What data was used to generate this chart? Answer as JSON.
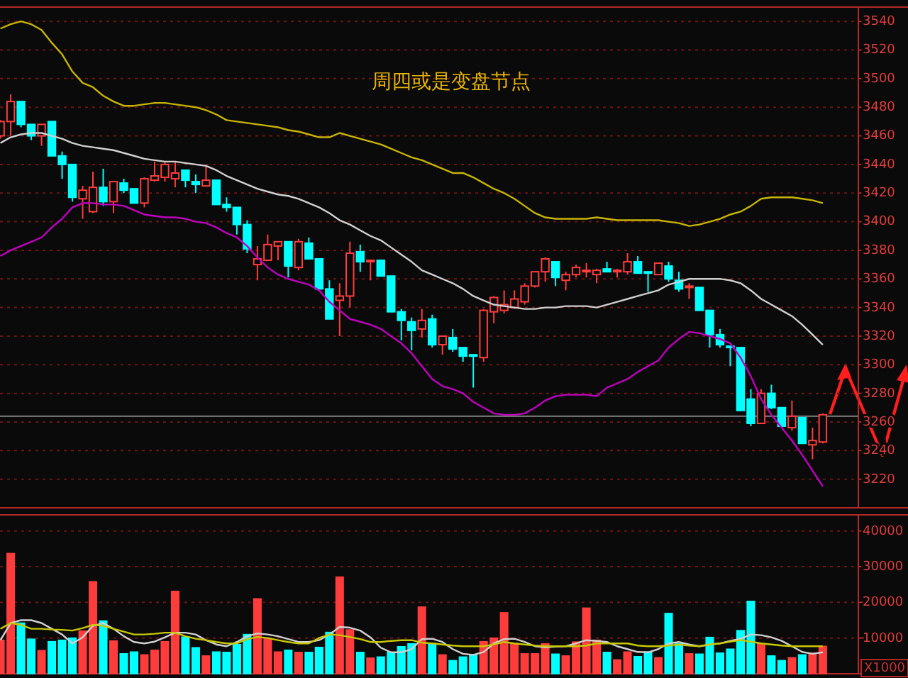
{
  "chart_data": [
    {
      "type": "candlestick",
      "title": "周四或是变盘节点",
      "categories": [
        null,
        null,
        null,
        null,
        null,
        null,
        null,
        null,
        null,
        null,
        null,
        null,
        null,
        null,
        null,
        null,
        null,
        null,
        null,
        null,
        null,
        null,
        null,
        null,
        null,
        null,
        null,
        null,
        null,
        null,
        null,
        null,
        null,
        null,
        null,
        null,
        null,
        null,
        null,
        null,
        null,
        null,
        null,
        null,
        null,
        null,
        null,
        null,
        null,
        null,
        null,
        null,
        null,
        null,
        null,
        null,
        null,
        null,
        null,
        null,
        null,
        null,
        null,
        null,
        null,
        null,
        null,
        null,
        null,
        null,
        null,
        null,
        null,
        null,
        null,
        null,
        null,
        null,
        null,
        null,
        null
      ],
      "ohlc": [
        [
          3460,
          3471,
          3458,
          3470
        ],
        [
          3470,
          3489,
          3460,
          3484
        ],
        [
          3484,
          3484,
          3466,
          3468
        ],
        [
          3468,
          3468,
          3457,
          3460
        ],
        [
          3460,
          3468,
          3453,
          3468
        ],
        [
          3470,
          3470,
          3446,
          3446
        ],
        [
          3446,
          3449,
          3430,
          3440
        ],
        [
          3440,
          3440,
          3414,
          3417
        ],
        [
          3416,
          3425,
          3402,
          3422
        ],
        [
          3407,
          3435,
          3406,
          3424
        ],
        [
          3424,
          3437,
          3411,
          3414
        ],
        [
          3414,
          3428,
          3406,
          3428
        ],
        [
          3427,
          3430,
          3420,
          3422
        ],
        [
          3423,
          3423,
          3413,
          3413
        ],
        [
          3413,
          3431,
          3410,
          3430
        ],
        [
          3429,
          3442,
          3428,
          3432
        ],
        [
          3431,
          3442,
          3428,
          3440
        ],
        [
          3430,
          3442,
          3424,
          3434
        ],
        [
          3436,
          3436,
          3424,
          3429
        ],
        [
          3428,
          3433,
          3420,
          3426
        ],
        [
          3425,
          3439,
          3425,
          3429
        ],
        [
          3429,
          3429,
          3412,
          3412
        ],
        [
          3412,
          3417,
          3407,
          3410
        ],
        [
          3410,
          3410,
          3391,
          3398
        ],
        [
          3398,
          3401,
          3378,
          3381
        ],
        [
          3370,
          3383,
          3359,
          3374
        ],
        [
          3373,
          3391,
          3373,
          3384
        ],
        [
          3383,
          3386,
          3373,
          3386
        ],
        [
          3386,
          3386,
          3361,
          3369
        ],
        [
          3368,
          3388,
          3366,
          3386
        ],
        [
          3385,
          3389,
          3374,
          3374
        ],
        [
          3374,
          3374,
          3353,
          3353
        ],
        [
          3353,
          3359,
          3332,
          3332
        ],
        [
          3345,
          3357,
          3320,
          3348
        ],
        [
          3348,
          3386,
          3340,
          3378
        ],
        [
          3379,
          3384,
          3365,
          3372
        ],
        [
          3372,
          3373,
          3359,
          3373
        ],
        [
          3373,
          3373,
          3362,
          3362
        ],
        [
          3362,
          3362,
          3337,
          3337
        ],
        [
          3337,
          3339,
          3317,
          3331
        ],
        [
          3330,
          3333,
          3310,
          3324
        ],
        [
          3325,
          3339,
          3319,
          3331
        ],
        [
          3332,
          3335,
          3312,
          3314
        ],
        [
          3314,
          3320,
          3307,
          3320
        ],
        [
          3319,
          3325,
          3309,
          3311
        ],
        [
          3312,
          3312,
          3302,
          3306
        ],
        [
          3307,
          3307,
          3284,
          3306
        ],
        [
          3305,
          3339,
          3302,
          3338
        ],
        [
          3337,
          3348,
          3329,
          3347
        ],
        [
          3338,
          3352,
          3336,
          3342
        ],
        [
          3340,
          3352,
          3339,
          3346
        ],
        [
          3344,
          3357,
          3342,
          3355
        ],
        [
          3355,
          3365,
          3354,
          3365
        ],
        [
          3365,
          3375,
          3358,
          3374
        ],
        [
          3372,
          3372,
          3355,
          3361
        ],
        [
          3359,
          3365,
          3352,
          3363
        ],
        [
          3363,
          3370,
          3361,
          3368
        ],
        [
          3365,
          3371,
          3361,
          3366
        ],
        [
          3363,
          3367,
          3357,
          3366
        ],
        [
          3367,
          3372,
          3365,
          3365
        ],
        [
          3365,
          3367,
          3361,
          3366
        ],
        [
          3365,
          3378,
          3363,
          3372
        ],
        [
          3372,
          3376,
          3364,
          3364
        ],
        [
          3365,
          3365,
          3351,
          3364
        ],
        [
          3363,
          3371,
          3363,
          3371
        ],
        [
          3369,
          3372,
          3358,
          3360
        ],
        [
          3359,
          3365,
          3351,
          3353
        ],
        [
          3354,
          3357,
          3346,
          3355
        ],
        [
          3354,
          3354,
          3338,
          3338
        ],
        [
          3338,
          3338,
          3312,
          3321
        ],
        [
          3321,
          3325,
          3312,
          3314
        ],
        [
          3313,
          3313,
          3299,
          3312
        ],
        [
          3312,
          3312,
          3268,
          3268
        ],
        [
          3276,
          3283,
          3257,
          3259
        ],
        [
          3259,
          3283,
          3259,
          3280
        ],
        [
          3280,
          3286,
          3269,
          3270
        ],
        [
          3270,
          3270,
          3257,
          3257
        ],
        [
          3256,
          3275,
          3254,
          3264
        ],
        [
          3263,
          3263,
          3245,
          3245
        ],
        [
          3244,
          3256,
          3234,
          3247
        ],
        [
          3246,
          3266,
          3245,
          3265
        ]
      ],
      "colors": [
        "#ff3c3c",
        "#ff3c3c",
        "#00ffff",
        "#00ffff",
        "#ff3c3c",
        "#00ffff",
        "#00ffff",
        "#00ffff",
        "#ff3c3c",
        "#ff3c3c",
        "#00ffff",
        "#ff3c3c",
        "#00ffff",
        "#00ffff",
        "#ff3c3c",
        "#ff3c3c",
        "#ff3c3c",
        "#ff3c3c",
        "#00ffff",
        "#00ffff",
        "#ff3c3c",
        "#00ffff",
        "#00ffff",
        "#00ffff",
        "#00ffff",
        "#ff3c3c",
        "#ff3c3c",
        "#ff3c3c",
        "#00ffff",
        "#ff3c3c",
        "#00ffff",
        "#00ffff",
        "#00ffff",
        "#ff3c3c",
        "#ff3c3c",
        "#00ffff",
        "#ff3c3c",
        "#00ffff",
        "#00ffff",
        "#00ffff",
        "#00ffff",
        "#ff3c3c",
        "#00ffff",
        "#ff3c3c",
        "#00ffff",
        "#00ffff",
        "#00ffff",
        "#ff3c3c",
        "#ff3c3c",
        "#ff3c3c",
        "#ff3c3c",
        "#ff3c3c",
        "#ff3c3c",
        "#ff3c3c",
        "#00ffff",
        "#ff3c3c",
        "#ff3c3c",
        "#ff3c3c",
        "#ff3c3c",
        "#00ffff",
        "#ff3c3c",
        "#ff3c3c",
        "#00ffff",
        "#00ffff",
        "#ff3c3c",
        "#00ffff",
        "#00ffff",
        "#ff3c3c",
        "#00ffff",
        "#00ffff",
        "#00ffff",
        "#00ffff",
        "#00ffff",
        "#00ffff",
        "#ff3c3c",
        "#00ffff",
        "#00ffff",
        "#ff3c3c",
        "#00ffff",
        "#ff3c3c",
        "#ff3c3c"
      ],
      "series": [
        {
          "type": "line",
          "color": "#c8b400",
          "values": [
            3535,
            3538,
            3540,
            3538,
            3534,
            3525,
            3517,
            3505,
            3497,
            3494,
            3488,
            3484,
            3481,
            3481,
            3482,
            3483,
            3483,
            3482,
            3481,
            3480,
            3478,
            3475,
            3471,
            3470,
            3469,
            3468,
            3467,
            3466,
            3464,
            3463,
            3461,
            3459,
            3459,
            3462,
            3460,
            3458,
            3456,
            3454,
            3451,
            3448,
            3445,
            3443,
            3440,
            3437,
            3434,
            3434,
            3431,
            3427,
            3423,
            3420,
            3416,
            3411,
            3406,
            3403,
            3402,
            3402,
            3402,
            3402,
            3403,
            3402,
            3401,
            3401,
            3401,
            3401,
            3401,
            3400,
            3399,
            3397,
            3398,
            3400,
            3402,
            3405,
            3407,
            3411,
            3416,
            3417,
            3417,
            3417,
            3416,
            3415,
            3413
          ]
        },
        {
          "type": "line",
          "color": "#d0d0d0",
          "values": [
            3455,
            3459,
            3461,
            3462,
            3462,
            3460,
            3458,
            3455,
            3453,
            3452,
            3451,
            3450,
            3448,
            3446,
            3444,
            3443,
            3442,
            3442,
            3441,
            3440,
            3439,
            3436,
            3432,
            3429,
            3426,
            3423,
            3421,
            3419,
            3418,
            3416,
            3413,
            3410,
            3406,
            3401,
            3398,
            3394,
            3390,
            3387,
            3382,
            3377,
            3372,
            3366,
            3363,
            3360,
            3357,
            3353,
            3348,
            3345,
            3342,
            3341,
            3340,
            3339,
            3339,
            3340,
            3340,
            3341,
            3341,
            3341,
            3340,
            3342,
            3344,
            3346,
            3348,
            3350,
            3352,
            3356,
            3358,
            3360,
            3360,
            3360,
            3360,
            3359,
            3357,
            3352,
            3346,
            3342,
            3338,
            3334,
            3328,
            3321,
            3314
          ]
        },
        {
          "type": "line",
          "color": "#c000c0",
          "values": [
            3376,
            3380,
            3383,
            3386,
            3389,
            3396,
            3402,
            3410,
            3413,
            3413,
            3412,
            3412,
            3411,
            3408,
            3405,
            3404,
            3403,
            3403,
            3402,
            3400,
            3399,
            3396,
            3392,
            3389,
            3383,
            3375,
            3368,
            3363,
            3360,
            3358,
            3356,
            3352,
            3344,
            3338,
            3332,
            3330,
            3328,
            3325,
            3320,
            3315,
            3308,
            3299,
            3290,
            3285,
            3283,
            3280,
            3274,
            3270,
            3266,
            3265,
            3265,
            3266,
            3270,
            3275,
            3278,
            3279,
            3279,
            3279,
            3278,
            3284,
            3287,
            3290,
            3295,
            3299,
            3303,
            3312,
            3318,
            3323,
            3322,
            3320,
            3318,
            3315,
            3305,
            3292,
            3276,
            3265,
            3256,
            3247,
            3237,
            3226,
            3215
          ]
        }
      ],
      "ylim": [
        3200,
        3550
      ],
      "yticks": [
        3220,
        3240,
        3260,
        3280,
        3300,
        3320,
        3340,
        3360,
        3380,
        3400,
        3420,
        3440,
        3460,
        3480,
        3500,
        3520,
        3540
      ],
      "grid": "y",
      "tick_labels": "y",
      "ref_lines": [
        {
          "axis": "y",
          "value": 3264,
          "color": "#6e6e6e"
        }
      ]
    },
    {
      "type": "bar",
      "categories": [
        null,
        null,
        null,
        null,
        null,
        null,
        null,
        null,
        null,
        null,
        null,
        null,
        null,
        null,
        null,
        null,
        null,
        null,
        null,
        null,
        null,
        null,
        null,
        null,
        null,
        null,
        null,
        null,
        null,
        null,
        null,
        null,
        null,
        null,
        null,
        null,
        null,
        null,
        null,
        null,
        null,
        null,
        null,
        null,
        null,
        null,
        null,
        null,
        null,
        null,
        null,
        null,
        null,
        null,
        null,
        null,
        null,
        null,
        null,
        null,
        null,
        null,
        null,
        null,
        null,
        null,
        null,
        null,
        null,
        null,
        null,
        null,
        null,
        null,
        null,
        null,
        null,
        null,
        null,
        null,
        null
      ],
      "series": [
        {
          "type": "bar",
          "values": [
            9400,
            33700,
            14200,
            9700,
            6500,
            9000,
            9400,
            10000,
            12000,
            25800,
            14800,
            9200,
            5600,
            6100,
            5300,
            6600,
            9000,
            23100,
            10300,
            7300,
            5000,
            6100,
            6000,
            8200,
            11000,
            21000,
            9800,
            6100,
            6600,
            6000,
            6000,
            7400,
            11600,
            27100,
            12300,
            6000,
            4400,
            4700,
            6000,
            7600,
            8400,
            18700,
            8500,
            5300,
            3700,
            4700,
            5300,
            9000,
            10000,
            17100,
            8500,
            5600,
            5600,
            8400,
            5500,
            5000,
            8900,
            18400,
            9400,
            6000,
            3900,
            6100,
            4800,
            6100,
            4500,
            16900,
            8400,
            5600,
            5500,
            10200,
            5800,
            6900,
            12100,
            20300,
            8400,
            5000,
            3700,
            4500,
            5300,
            5800,
            7700
          ],
          "colors": [
            "#ff3c3c",
            "#ff3c3c",
            "#00ffff",
            "#00ffff",
            "#ff3c3c",
            "#00ffff",
            "#00ffff",
            "#00ffff",
            "#ff3c3c",
            "#ff3c3c",
            "#00ffff",
            "#ff3c3c",
            "#00ffff",
            "#00ffff",
            "#ff3c3c",
            "#ff3c3c",
            "#ff3c3c",
            "#ff3c3c",
            "#00ffff",
            "#00ffff",
            "#ff3c3c",
            "#00ffff",
            "#00ffff",
            "#00ffff",
            "#00ffff",
            "#ff3c3c",
            "#ff3c3c",
            "#ff3c3c",
            "#00ffff",
            "#ff3c3c",
            "#00ffff",
            "#00ffff",
            "#00ffff",
            "#ff3c3c",
            "#ff3c3c",
            "#00ffff",
            "#ff3c3c",
            "#00ffff",
            "#00ffff",
            "#00ffff",
            "#00ffff",
            "#ff3c3c",
            "#00ffff",
            "#ff3c3c",
            "#00ffff",
            "#00ffff",
            "#00ffff",
            "#ff3c3c",
            "#ff3c3c",
            "#ff3c3c",
            "#ff3c3c",
            "#ff3c3c",
            "#ff3c3c",
            "#ff3c3c",
            "#00ffff",
            "#ff3c3c",
            "#ff3c3c",
            "#ff3c3c",
            "#ff3c3c",
            "#00ffff",
            "#ff3c3c",
            "#ff3c3c",
            "#00ffff",
            "#00ffff",
            "#ff3c3c",
            "#00ffff",
            "#00ffff",
            "#ff3c3c",
            "#00ffff",
            "#00ffff",
            "#00ffff",
            "#00ffff",
            "#00ffff",
            "#00ffff",
            "#ff3c3c",
            "#00ffff",
            "#00ffff",
            "#ff3c3c",
            "#00ffff",
            "#ff3c3c",
            "#ff3c3c"
          ]
        },
        {
          "type": "line",
          "color": "#d0d0d0",
          "values": [
            9400,
            14200,
            15000,
            15000,
            14200,
            12600,
            11000,
            8500,
            10200,
            13400,
            14200,
            12600,
            10500,
            8900,
            8500,
            9000,
            10200,
            11500,
            11500,
            11000,
            9400,
            8200,
            7700,
            8900,
            10500,
            11300,
            11000,
            10500,
            9700,
            8900,
            8900,
            9400,
            11000,
            13100,
            12900,
            12100,
            10200,
            7300,
            6000,
            6000,
            6900,
            9700,
            9800,
            8900,
            6900,
            5600,
            5300,
            6100,
            8500,
            9700,
            9800,
            8900,
            7700,
            7400,
            7600,
            7700,
            8500,
            9400,
            9200,
            8900,
            7700,
            6900,
            6100,
            6000,
            6900,
            8500,
            8900,
            8200,
            7700,
            8200,
            8500,
            9200,
            9800,
            11000,
            10800,
            10200,
            9200,
            7700,
            6100,
            5600,
            6000
          ]
        },
        {
          "type": "line",
          "color": "#c8c800",
          "values": [
            12600,
            14200,
            13700,
            12600,
            12600,
            12400,
            12300,
            12100,
            12800,
            13700,
            13400,
            12600,
            11800,
            11000,
            11000,
            11200,
            11500,
            11500,
            10500,
            9800,
            9400,
            8900,
            8500,
            8500,
            9700,
            10300,
            10000,
            9400,
            8900,
            8500,
            8500,
            10000,
            11000,
            10800,
            10300,
            9700,
            8900,
            8900,
            9200,
            9400,
            9400,
            8700,
            8500,
            8200,
            7900,
            7700,
            7700,
            7700,
            8200,
            8900,
            8500,
            8200,
            7900,
            7700,
            7700,
            7700,
            7700,
            7900,
            8500,
            8500,
            8500,
            8500,
            7900,
            7700,
            7700,
            7900,
            8200,
            7900,
            7700,
            8200,
            8500,
            9000,
            9400,
            9000,
            8500,
            8200,
            7900,
            7700,
            7700,
            7700,
            7700
          ]
        }
      ],
      "ylim": [
        0,
        44500
      ],
      "yticks": [
        10000,
        20000,
        30000,
        40000
      ],
      "grid": "y",
      "tick_labels": "y",
      "annotations": [
        "X1000"
      ]
    }
  ]
}
